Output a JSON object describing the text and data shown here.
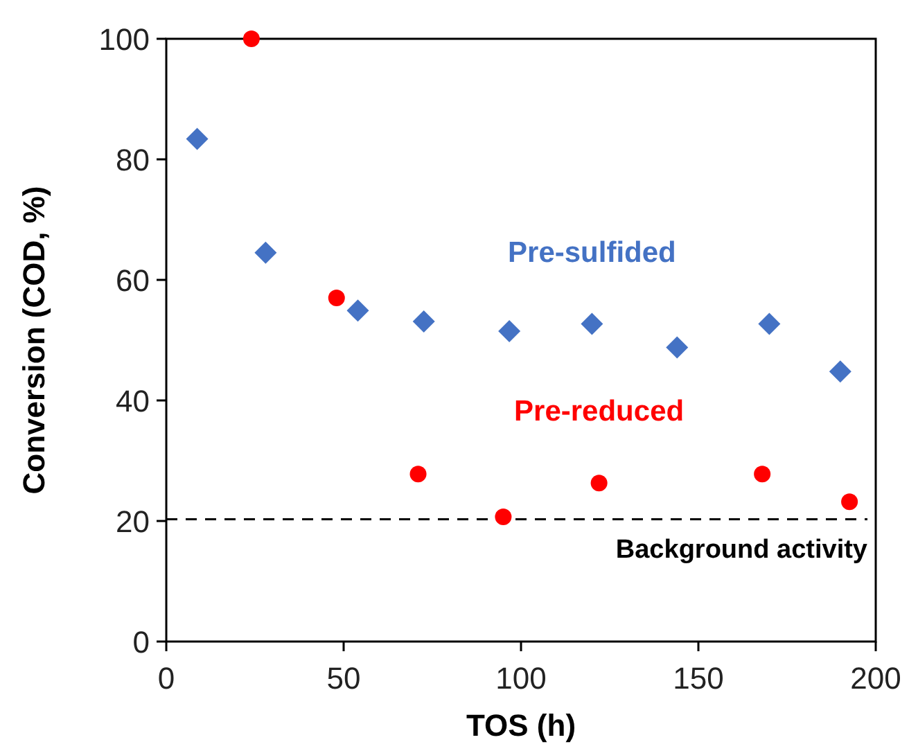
{
  "chart_data": {
    "type": "scatter",
    "xlabel": "TOS (h)",
    "ylabel": "Conversion (COD, %)",
    "xlim": [
      0,
      200
    ],
    "ylim": [
      0,
      100
    ],
    "xticks": [
      0,
      50,
      100,
      150,
      200
    ],
    "yticks": [
      0,
      20,
      40,
      60,
      80,
      100
    ],
    "grid": false,
    "series": [
      {
        "name": "Pre-sulfided",
        "color": "#4472c4",
        "marker": "diamond",
        "x": [
          8.7,
          28,
          54,
          72.6,
          96.7,
          120,
          144,
          170,
          190
        ],
        "values": [
          83.4,
          64.5,
          54.9,
          53.1,
          51.5,
          52.7,
          48.8,
          52.7,
          44.8
        ]
      },
      {
        "name": "Pre-reduced",
        "color": "#ff0000",
        "marker": "circle",
        "x": [
          24,
          48,
          71,
          95,
          122,
          168,
          192.6
        ],
        "values": [
          100,
          57,
          27.8,
          20.7,
          26.3,
          27.8,
          23.2
        ]
      }
    ],
    "ref_lines": [
      {
        "axis": "y",
        "value": 20.3,
        "label": "Background activity",
        "color": "#000000",
        "line_style": "dashed"
      }
    ]
  }
}
